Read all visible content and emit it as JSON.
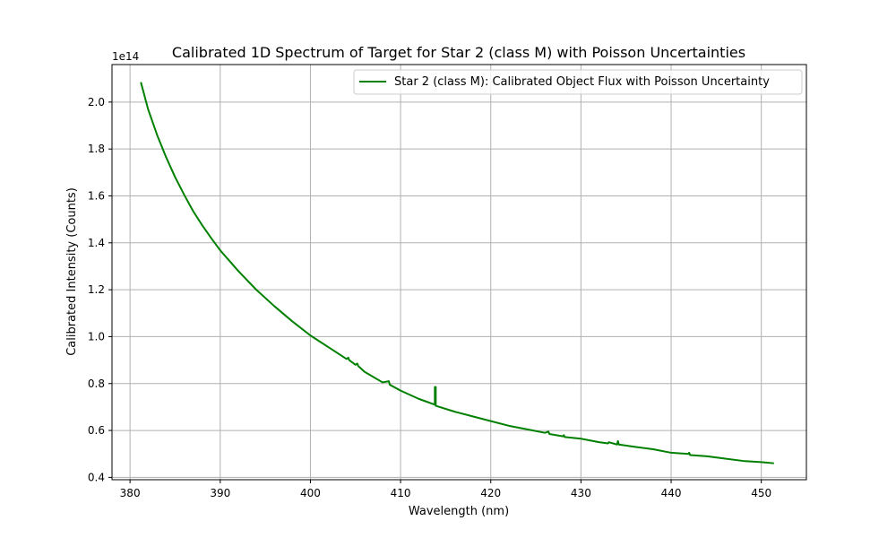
{
  "chart_data": {
    "type": "line",
    "title": "Calibrated 1D Spectrum of Target for Star 2 (class M) with Poisson Uncertainties",
    "xlabel": "Wavelength (nm)",
    "ylabel": "Calibrated Intensity (Counts)",
    "y_offset_label": "1e14",
    "y_multiplier": 100000000000000.0,
    "xlim": [
      378,
      455
    ],
    "ylim": [
      0.39,
      2.16
    ],
    "x_ticks": [
      380,
      390,
      400,
      410,
      420,
      430,
      440,
      450
    ],
    "x_tick_labels": [
      "380",
      "390",
      "400",
      "410",
      "420",
      "430",
      "440",
      "450"
    ],
    "y_ticks": [
      0.4,
      0.6,
      0.8,
      1.0,
      1.2,
      1.4,
      1.6,
      1.8,
      2.0
    ],
    "y_tick_labels": [
      "0.4",
      "0.6",
      "0.8",
      "1.0",
      "1.2",
      "1.4",
      "1.6",
      "1.8",
      "2.0"
    ],
    "grid": true,
    "legend_position": "top-right",
    "series": [
      {
        "name": "Star 2 (class M): Calibrated Object Flux with Poisson Uncertainty",
        "color": "#008000",
        "x": [
          381.2,
          382.0,
          383.0,
          384.0,
          385.0,
          386.0,
          387.0,
          388.0,
          389.0,
          390.0,
          392.0,
          394.0,
          396.0,
          398.0,
          400.0,
          402.0,
          404.0,
          404.2,
          404.3,
          405.0,
          405.2,
          405.3,
          406.0,
          408.0,
          408.7,
          408.8,
          410.0,
          412.0,
          413.8,
          413.8,
          413.9,
          413.9,
          416.0,
          418.0,
          420.0,
          422.0,
          424.0,
          426.0,
          426.4,
          426.5,
          428.0,
          428.1,
          428.2,
          430.0,
          432.0,
          433.0,
          433.1,
          434.0,
          434.1,
          434.2,
          436.0,
          438.0,
          440.0,
          441.9,
          442.0,
          442.1,
          444.0,
          446.0,
          448.0,
          450.0,
          451.4
        ],
        "y": [
          2.085,
          1.97,
          1.86,
          1.765,
          1.68,
          1.605,
          1.535,
          1.475,
          1.42,
          1.368,
          1.28,
          1.2,
          1.13,
          1.065,
          1.005,
          0.955,
          0.905,
          0.91,
          0.9,
          0.88,
          0.885,
          0.875,
          0.85,
          0.805,
          0.81,
          0.795,
          0.77,
          0.735,
          0.71,
          0.785,
          0.785,
          0.705,
          0.68,
          0.66,
          0.64,
          0.62,
          0.605,
          0.59,
          0.595,
          0.585,
          0.575,
          0.58,
          0.572,
          0.565,
          0.55,
          0.545,
          0.55,
          0.54,
          0.555,
          0.54,
          0.53,
          0.52,
          0.505,
          0.5,
          0.505,
          0.495,
          0.49,
          0.48,
          0.47,
          0.465,
          0.46
        ]
      }
    ]
  }
}
